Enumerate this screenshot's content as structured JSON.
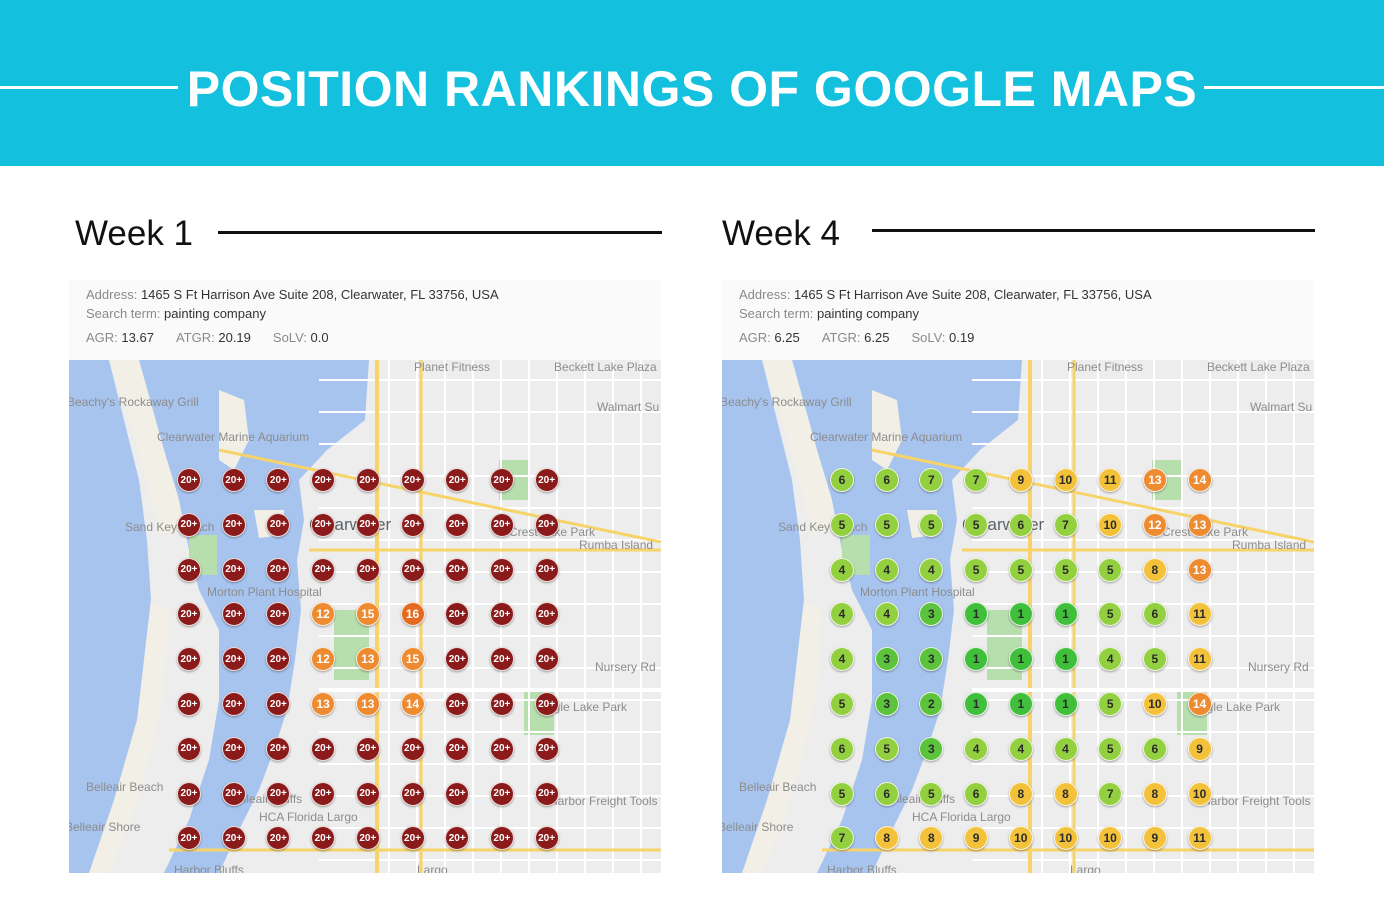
{
  "banner": {
    "title": "POSITION RANKINGS OF GOOGLE MAPS",
    "background": "#13c0de"
  },
  "panels": [
    {
      "week_label": "Week 1",
      "address_label": "Address:",
      "address_value": "1465 S Ft Harrison Ave Suite 208, Clearwater, FL 33756, USA",
      "search_label": "Search term:",
      "search_value": "painting company",
      "agr_label": "AGR:",
      "agr_value": "13.67",
      "atgr_label": "ATGR:",
      "atgr_value": "20.19",
      "solv_label": "SoLV:",
      "solv_value": "0.0",
      "grid": [
        [
          "20+",
          "20+",
          "20+",
          "20+",
          "20+",
          "20+",
          "20+",
          "20+",
          "20+"
        ],
        [
          "20+",
          "20+",
          "20+",
          "20+",
          "20+",
          "20+",
          "20+",
          "20+",
          "20+"
        ],
        [
          "20+",
          "20+",
          "20+",
          "20+",
          "20+",
          "20+",
          "20+",
          "20+",
          "20+"
        ],
        [
          "20+",
          "20+",
          "20+",
          "12",
          "15",
          "16",
          "20+",
          "20+",
          "20+"
        ],
        [
          "20+",
          "20+",
          "20+",
          "12",
          "13",
          "15",
          "20+",
          "20+",
          "20+"
        ],
        [
          "20+",
          "20+",
          "20+",
          "13",
          "13",
          "14",
          "20+",
          "20+",
          "20+"
        ],
        [
          "20+",
          "20+",
          "20+",
          "20+",
          "20+",
          "20+",
          "20+",
          "20+",
          "20+"
        ],
        [
          "20+",
          "20+",
          "20+",
          "20+",
          "20+",
          "20+",
          "20+",
          "20+",
          "20+"
        ],
        [
          "20+",
          "20+",
          "20+",
          "20+",
          "20+",
          "20+",
          "20+",
          "20+",
          "20+"
        ]
      ]
    },
    {
      "week_label": "Week 4",
      "address_label": "Address:",
      "address_value": "1465 S Ft Harrison Ave Suite 208, Clearwater, FL 33756, USA",
      "search_label": "Search term:",
      "search_value": "painting company",
      "agr_label": "AGR:",
      "agr_value": "6.25",
      "atgr_label": "ATGR:",
      "atgr_value": "6.25",
      "solv_label": "SoLV:",
      "solv_value": "0.19",
      "grid": [
        [
          "6",
          "6",
          "7",
          "7",
          "9",
          "10",
          "11",
          "13",
          "14"
        ],
        [
          "5",
          "5",
          "5",
          "5",
          "6",
          "7",
          "10",
          "12",
          "13"
        ],
        [
          "4",
          "4",
          "4",
          "5",
          "5",
          "5",
          "5",
          "8",
          "13"
        ],
        [
          "4",
          "4",
          "3",
          "1",
          "1",
          "1",
          "5",
          "6",
          "11"
        ],
        [
          "4",
          "3",
          "3",
          "1",
          "1",
          "1",
          "4",
          "5",
          "11"
        ],
        [
          "5",
          "3",
          "2",
          "1",
          "1",
          "1",
          "5",
          "10",
          "14"
        ],
        [
          "6",
          "5",
          "3",
          "4",
          "4",
          "4",
          "5",
          "6",
          "9"
        ],
        [
          "5",
          "6",
          "5",
          "6",
          "8",
          "8",
          "7",
          "8",
          "10"
        ],
        [
          "7",
          "8",
          "8",
          "9",
          "10",
          "10",
          "10",
          "9",
          "11"
        ]
      ]
    }
  ],
  "map_labels": [
    {
      "text": "Planet Fitness",
      "big": false
    },
    {
      "text": "Beckett Lake Plaza",
      "big": false
    },
    {
      "text": "Beachy's Rockaway Grill",
      "big": false
    },
    {
      "text": "Walmart Su",
      "big": false
    },
    {
      "text": "Clearwater Marine Aquarium",
      "big": false
    },
    {
      "text": "Sand Key Beach",
      "big": false
    },
    {
      "text": "Clearwater",
      "big": true
    },
    {
      "text": "Crest Lake Park",
      "big": false
    },
    {
      "text": "Rumba Island",
      "big": false
    },
    {
      "text": "Morton Plant Hospital",
      "big": false
    },
    {
      "text": "Nursery Rd",
      "big": false
    },
    {
      "text": "Belleair Beach",
      "big": false
    },
    {
      "text": "Belleair Bluffs",
      "big": false
    },
    {
      "text": "Harbor Freight Tools",
      "big": false
    },
    {
      "text": "HCA Florida Largo",
      "big": false
    },
    {
      "text": "Belleair Shore",
      "big": false
    },
    {
      "text": "Eagle Lake Park",
      "big": false
    },
    {
      "text": "Harbor Bluffs",
      "big": false
    },
    {
      "text": "Largo",
      "big": false
    }
  ],
  "colors": {
    "rank_20_plus": "#8b1a1a",
    "rank_1": "#3fbf3a",
    "rank_2_3": "#5cc43c",
    "rank_4_7": "#93d03f",
    "rank_8_11": "#f3c23a",
    "rank_12_15": "#ee8a2f",
    "rank_16": "#e56a1f",
    "water": "#a7c4ef",
    "land": "#ededed",
    "park": "#b7dfae",
    "major_road": "#f6d46a"
  }
}
